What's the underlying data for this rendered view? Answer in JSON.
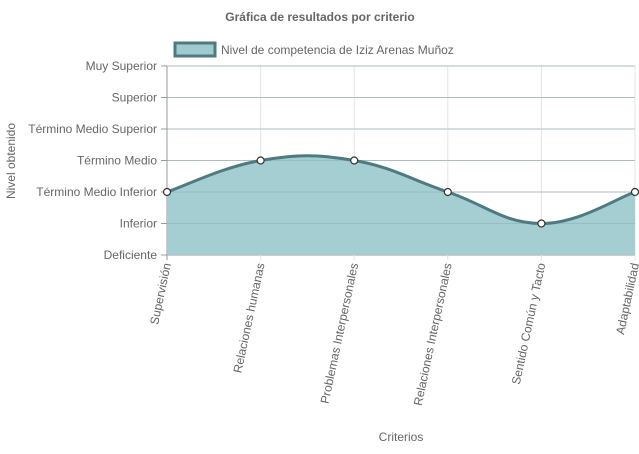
{
  "chart_data": {
    "type": "area",
    "title": "Gráfica de resultados por criterio",
    "xlabel": "Criterios",
    "ylabel": "Nivel obtenido",
    "categories": [
      "Supervisión",
      "Relaciones humanas",
      "Problemas Interpersonales",
      "Relaciones Interpersonales",
      "Sentido Común y Tacto",
      "Adaptabilidad"
    ],
    "y_levels": [
      "Deficiente",
      "Inferior",
      "Término Medio Inferior",
      "Término Medio",
      "Término Medio Superior",
      "Superior",
      "Muy Superior"
    ],
    "ylim": [
      0,
      6
    ],
    "series": [
      {
        "name": "Nivel de competencia de Iziz Arenas Muñoz",
        "values": [
          2,
          3,
          3,
          2,
          1,
          2
        ]
      }
    ],
    "colors": {
      "line": "#4e7a80",
      "fill": "#9fcbcf",
      "grid": "#e4e4e4",
      "axis": "#999999",
      "text": "#666666"
    },
    "legend_position": "top",
    "grid": true
  }
}
